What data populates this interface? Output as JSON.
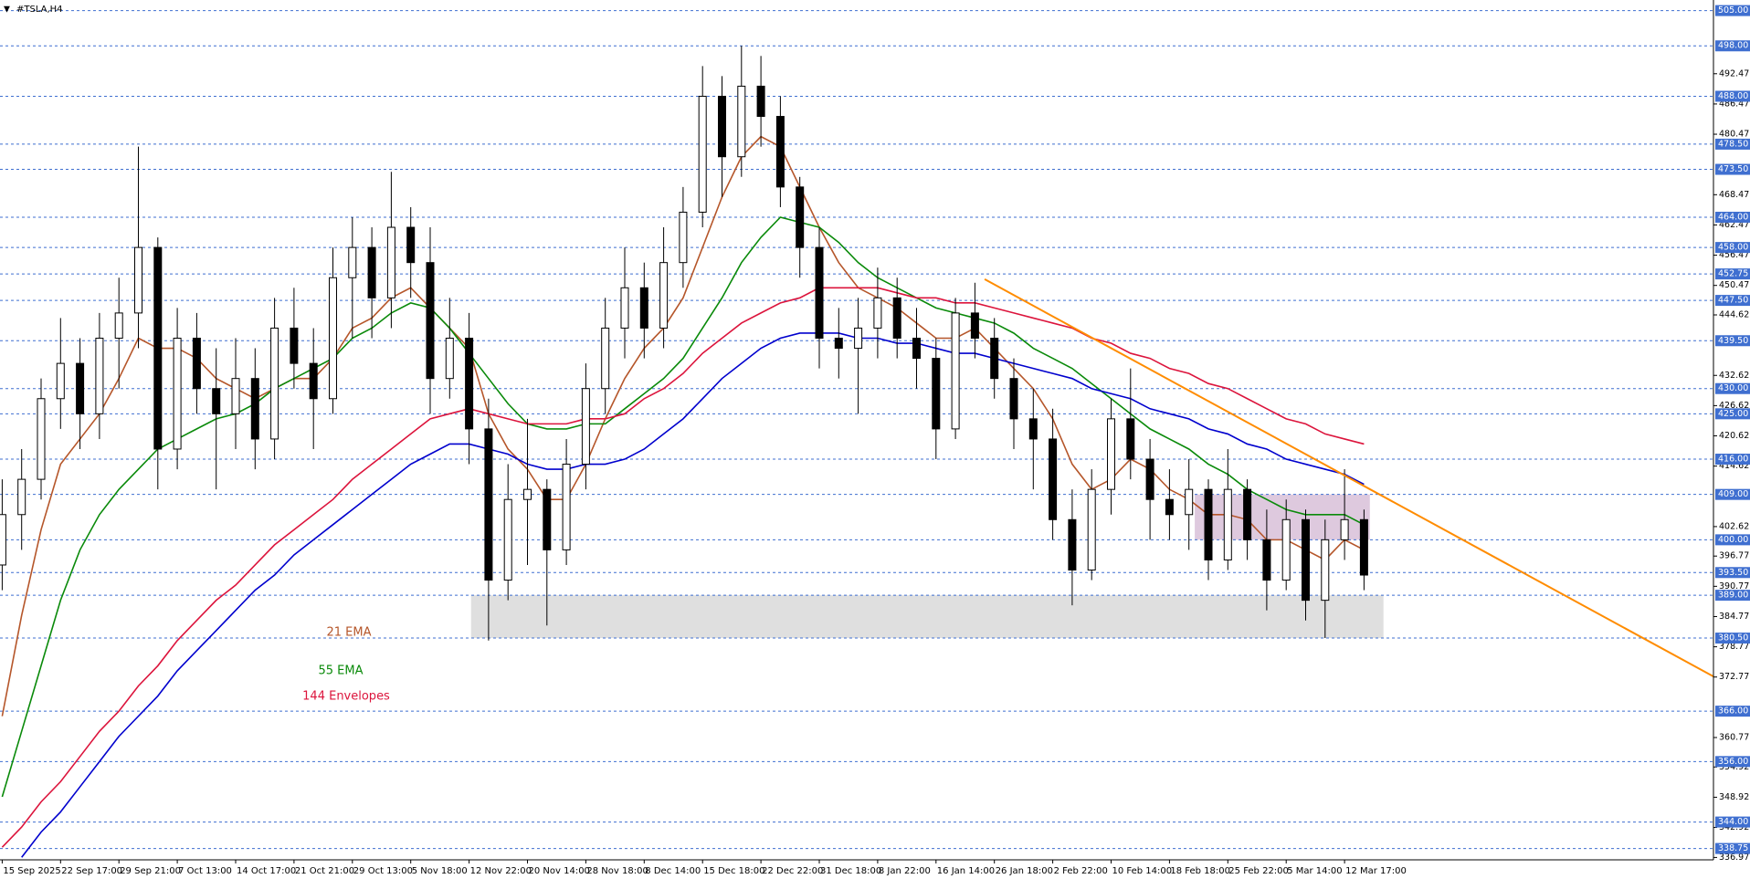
{
  "chart_data": {
    "type": "candlestick",
    "title": "#TSLA,H4",
    "categories": [
      "15 Sep 2025",
      null,
      null,
      "22 Sep 17:00",
      null,
      null,
      "29 Sep 21:00",
      null,
      null,
      "7 Oct 13:00",
      null,
      null,
      "14 Oct 17:00",
      null,
      null,
      "21 Oct 21:00",
      null,
      null,
      "29 Oct 13:00",
      null,
      null,
      "5 Nov 18:00",
      null,
      null,
      "12 Nov 22:00",
      null,
      null,
      "20 Nov 14:00",
      null,
      null,
      "28 Nov 18:00",
      null,
      null,
      "8 Dec 14:00",
      null,
      null,
      "15 Dec 18:00",
      null,
      null,
      "22 Dec 22:00",
      null,
      null,
      "31 Dec 18:00",
      null,
      null,
      "8 Jan 22:00",
      null,
      null,
      "16 Jan 14:00",
      null,
      null,
      "26 Jan 18:00",
      null,
      null,
      "2 Feb 22:00",
      null,
      null,
      "10 Feb 14:00",
      null,
      null,
      "18 Feb 18:00",
      null,
      null,
      "25 Feb 22:00",
      null,
      null,
      "5 Mar 14:00",
      null,
      null,
      "12 Mar 17:00",
      null
    ],
    "open": [
      395,
      405,
      412,
      428,
      435,
      425,
      440,
      445,
      458,
      418,
      440,
      430,
      425,
      432,
      420,
      442,
      435,
      428,
      452,
      458,
      448,
      462,
      455,
      432,
      440,
      422,
      392,
      408,
      410,
      398,
      415,
      430,
      442,
      450,
      442,
      455,
      465,
      488,
      476,
      490,
      484,
      470,
      458,
      440,
      438,
      442,
      448,
      440,
      436,
      422,
      445,
      440,
      432,
      424,
      420,
      404,
      394,
      410,
      424,
      416,
      408,
      405,
      410,
      396,
      410,
      400,
      392,
      404,
      388,
      400,
      404
    ],
    "high": [
      412,
      418,
      432,
      444,
      440,
      445,
      452,
      478,
      460,
      446,
      445,
      438,
      440,
      438,
      448,
      450,
      442,
      458,
      464,
      462,
      473,
      466,
      462,
      448,
      445,
      428,
      415,
      424,
      412,
      420,
      435,
      448,
      458,
      455,
      462,
      470,
      494,
      492,
      498,
      496,
      488,
      472,
      462,
      446,
      448,
      454,
      452,
      446,
      440,
      448,
      451,
      444,
      436,
      430,
      426,
      410,
      414,
      428,
      434,
      420,
      414,
      416,
      412,
      418,
      412,
      406,
      408,
      406,
      404,
      414,
      406
    ],
    "low": [
      390,
      398,
      408,
      422,
      418,
      420,
      430,
      438,
      410,
      414,
      425,
      410,
      418,
      414,
      416,
      430,
      418,
      425,
      440,
      440,
      442,
      448,
      425,
      428,
      415,
      380,
      388,
      395,
      383,
      395,
      410,
      425,
      436,
      436,
      438,
      450,
      462,
      468,
      472,
      478,
      466,
      452,
      434,
      432,
      425,
      436,
      436,
      430,
      416,
      420,
      436,
      428,
      418,
      410,
      400,
      387,
      392,
      405,
      412,
      400,
      400,
      398,
      392,
      394,
      396,
      386,
      390,
      384,
      380.5,
      396,
      390
    ],
    "close": [
      405,
      412,
      428,
      435,
      425,
      440,
      445,
      458,
      418,
      440,
      430,
      425,
      432,
      420,
      442,
      435,
      428,
      452,
      458,
      448,
      462,
      455,
      432,
      440,
      422,
      392,
      408,
      410,
      398,
      415,
      430,
      442,
      450,
      442,
      455,
      465,
      488,
      476,
      490,
      484,
      470,
      458,
      440,
      438,
      442,
      448,
      440,
      436,
      422,
      445,
      440,
      432,
      424,
      420,
      404,
      394,
      410,
      424,
      416,
      408,
      405,
      410,
      396,
      410,
      400,
      392,
      404,
      388,
      400,
      404,
      393
    ],
    "up_color": "#ffffff",
    "down_color": "#000000",
    "series": [
      {
        "name": "21 EMA",
        "color": "#b5562a",
        "values": [
          365,
          385,
          402,
          415,
          420,
          425,
          432,
          440,
          438,
          438,
          436,
          432,
          430,
          428,
          430,
          432,
          432,
          436,
          442,
          444,
          448,
          450,
          446,
          442,
          438,
          425,
          418,
          414,
          408,
          408,
          415,
          424,
          432,
          438,
          442,
          448,
          458,
          468,
          476,
          480,
          478,
          470,
          462,
          455,
          450,
          448,
          446,
          443,
          440,
          440,
          442,
          438,
          434,
          430,
          424,
          415,
          410,
          412,
          416,
          414,
          410,
          408,
          405,
          405,
          404,
          400,
          400,
          398,
          396,
          400,
          398
        ]
      },
      {
        "name": "55 EMA",
        "color": "#0a8a0a",
        "values": [
          349,
          362,
          375,
          388,
          398,
          405,
          410,
          414,
          418,
          420,
          422,
          424,
          425,
          427,
          430,
          432,
          434,
          436,
          440,
          442,
          445,
          447,
          446,
          442,
          437,
          432,
          427,
          423,
          422,
          422,
          423,
          423,
          426,
          429,
          432,
          436,
          442,
          448,
          455,
          460,
          464,
          463,
          462,
          459,
          455,
          452,
          450,
          448,
          446,
          445,
          444,
          443,
          441,
          438,
          436,
          434,
          431,
          428,
          425,
          422,
          420,
          418,
          415,
          413,
          410,
          408,
          406,
          405,
          405,
          405,
          403
        ]
      },
      {
        "name": "144 Envelopes",
        "color": "#dc143c",
        "values": [
          339,
          343,
          348,
          352,
          357,
          362,
          366,
          371,
          375,
          380,
          384,
          388,
          391,
          395,
          399,
          402,
          405,
          408,
          412,
          415,
          418,
          421,
          424,
          425,
          426,
          425,
          424,
          423,
          423,
          423,
          424,
          424,
          425,
          428,
          430,
          433,
          437,
          440,
          443,
          445,
          447,
          448,
          450,
          450,
          450,
          450,
          449,
          448,
          448,
          447,
          447,
          446,
          445,
          444,
          443,
          442,
          440,
          439,
          437,
          436,
          434,
          433,
          431,
          430,
          428,
          426,
          424,
          423,
          421,
          420,
          419
        ]
      },
      {
        "color": "#0000cd",
        "values": [
          null,
          337,
          342,
          346,
          351,
          356,
          361,
          365,
          369,
          374,
          378,
          382,
          386,
          390,
          393,
          397,
          400,
          403,
          406,
          409,
          412,
          415,
          417,
          419,
          419,
          418,
          417,
          415,
          414,
          414,
          415,
          415,
          416,
          418,
          421,
          424,
          428,
          432,
          435,
          438,
          440,
          441,
          441,
          441,
          440,
          440,
          439,
          439,
          438,
          437,
          437,
          436,
          435,
          434,
          433,
          432,
          430,
          429,
          428,
          426,
          425,
          424,
          422,
          421,
          419,
          418,
          416,
          415,
          414,
          413,
          411
        ]
      }
    ],
    "levels": [
      {
        "value": 505,
        "label": "505.00"
      },
      {
        "value": 498,
        "label": "498.00"
      },
      {
        "value": 488,
        "label": "488.00"
      },
      {
        "value": 478.5,
        "label": "478.50"
      },
      {
        "value": 473.5,
        "label": "473.50"
      },
      {
        "value": 464,
        "label": "464.00"
      },
      {
        "value": 458,
        "label": "458.00"
      },
      {
        "value": 452.75,
        "label": "452.75"
      },
      {
        "value": 447.5,
        "label": "447.50"
      },
      {
        "value": 439.5,
        "label": "439.50"
      },
      {
        "value": 430,
        "label": "430.00"
      },
      {
        "value": 425,
        "label": "425.00"
      },
      {
        "value": 416,
        "label": "416.00"
      },
      {
        "value": 409,
        "label": "409.00"
      },
      {
        "value": 400,
        "label": "400.00"
      },
      {
        "value": 393.5,
        "label": "393.50"
      },
      {
        "value": 389,
        "label": "389.00"
      },
      {
        "value": 380.5,
        "label": "380.50"
      },
      {
        "value": 366,
        "label": "366.00"
      },
      {
        "value": 356,
        "label": "356.00"
      },
      {
        "value": 344,
        "label": "344.00"
      },
      {
        "value": 338.75,
        "label": "338.75"
      }
    ],
    "level_color": "#3f6fd0",
    "zones": [
      {
        "low": 380.5,
        "high": 389,
        "start": 24.1,
        "end": 71,
        "color": "#d9d9d9"
      },
      {
        "low": 400,
        "high": 409,
        "start": 61.3,
        "end": 70.3,
        "color": "#d8bfd8"
      }
    ],
    "trendline": {
      "x": [
        50.5,
        88
      ],
      "values": [
        451.7,
        372.8
      ],
      "color": "#ff8c00"
    },
    "ylim": [
      336.5,
      507.1
    ],
    "yticks": [
      492.47,
      486.47,
      480.47,
      468.47,
      462.47,
      456.47,
      450.47,
      444.62,
      432.62,
      426.62,
      420.62,
      414.62,
      402.62,
      396.77,
      390.77,
      384.77,
      378.77,
      372.77,
      360.77,
      354.92,
      348.92,
      342.92,
      336.97
    ],
    "grid": false
  }
}
